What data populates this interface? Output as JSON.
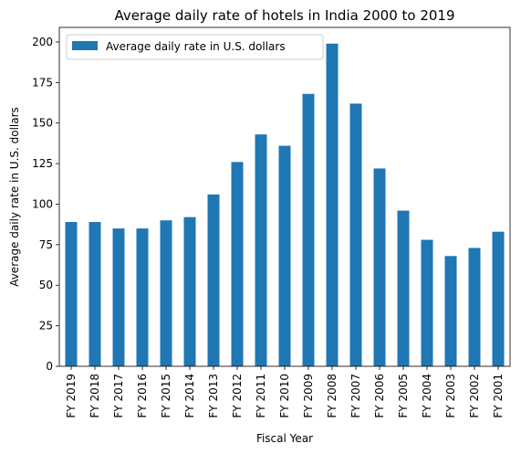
{
  "chart_data": {
    "type": "bar",
    "title": "Average daily rate of hotels in India 2000 to 2019",
    "xlabel": "Fiscal Year",
    "ylabel": "Average daily rate in U.S. dollars",
    "categories": [
      "FY 2019",
      "FY 2018",
      "FY 2017",
      "FY 2016",
      "FY 2015",
      "FY 2014",
      "FY 2013",
      "FY 2012",
      "FY 2011",
      "FY 2010",
      "FY 2009",
      "FY 2008",
      "FY 2007",
      "FY 2006",
      "FY 2005",
      "FY 2004",
      "FY 2003",
      "FY 2002",
      "FY 2001"
    ],
    "series": [
      {
        "name": "Average daily rate in U.S. dollars",
        "values": [
          89,
          89,
          85,
          85,
          90,
          92,
          106,
          126,
          143,
          136,
          168,
          199,
          162,
          122,
          96,
          78,
          68,
          73,
          83
        ],
        "color": "#1f77b4"
      }
    ],
    "yticks": [
      0,
      25,
      50,
      75,
      100,
      125,
      150,
      175,
      200
    ],
    "ylim": [
      0,
      209
    ],
    "legend_position": "top-left",
    "grid": false
  }
}
